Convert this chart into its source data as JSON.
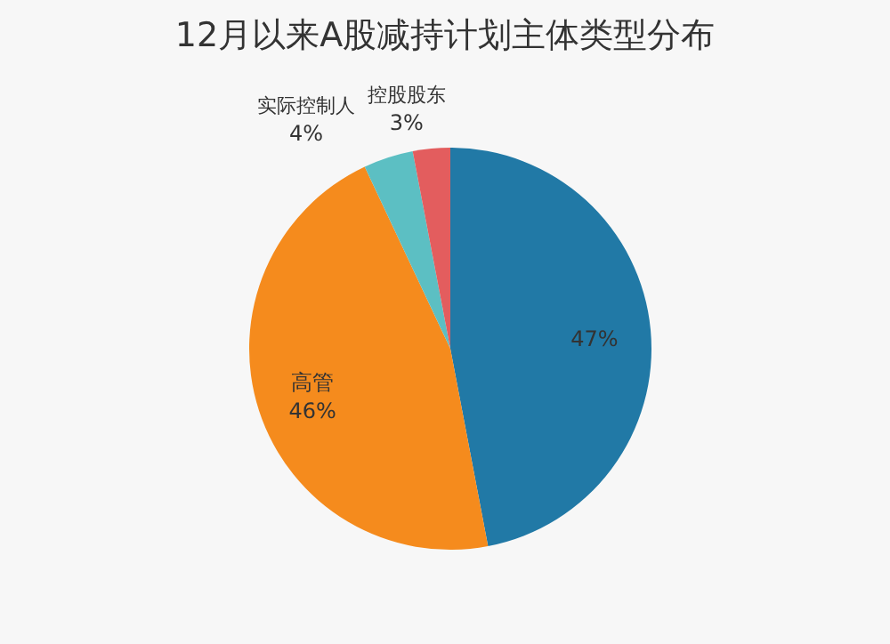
{
  "chart_data": {
    "type": "pie",
    "title": "12月以来A股减持计划主体类型分布",
    "categories": [
      null,
      "高管",
      "实际控制人",
      "控股股东"
    ],
    "values": [
      47,
      46,
      4,
      3
    ],
    "colors": [
      "#2179a6",
      "#f58b1d",
      "#5cbfc3",
      "#e35d5e"
    ],
    "value_labels": [
      "47%",
      "46%",
      "4%",
      "3%"
    ]
  }
}
